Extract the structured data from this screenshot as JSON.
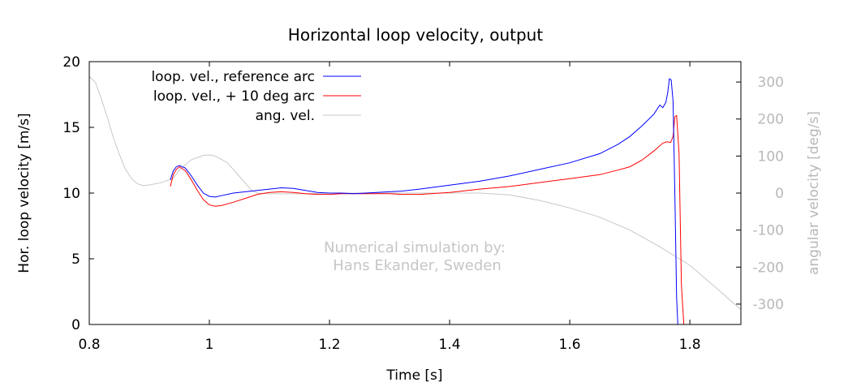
{
  "chart_data": {
    "type": "line",
    "title": "Horizontal loop velocity, output",
    "xlabel": "Time [s]",
    "ylabel": "Hor. loop velocity [m/s]",
    "y2label": "angular velocity [deg/s]",
    "xlim": [
      0.8,
      1.885
    ],
    "ylim": [
      0,
      20
    ],
    "y2lim": [
      -355,
      355
    ],
    "xticks": [
      0.8,
      1,
      1.2,
      1.4,
      1.6,
      1.8
    ],
    "xtick_labels": [
      "0.8",
      "1",
      "1.2",
      "1.4",
      "1.6",
      "1.8"
    ],
    "yticks": [
      0,
      5,
      10,
      15,
      20
    ],
    "ytick_labels": [
      "0",
      "5",
      "10",
      "15",
      "20"
    ],
    "y2ticks": [
      300,
      200,
      100,
      0,
      -100,
      -200,
      -300
    ],
    "y2tick_labels": [
      "300",
      "200",
      "100",
      "0",
      "-100",
      "-200",
      "-300"
    ],
    "grid": false,
    "legend_position": "top-left",
    "annotation": [
      "Numerical simulation by:",
      "Hans Ekander, Sweden"
    ],
    "series": [
      {
        "name": "loop. vel., reference arc",
        "color": "#0000ff",
        "axis": "y",
        "x": [
          0.935,
          0.94,
          0.945,
          0.95,
          0.96,
          0.97,
          0.98,
          0.99,
          1.0,
          1.01,
          1.02,
          1.04,
          1.06,
          1.08,
          1.1,
          1.12,
          1.14,
          1.16,
          1.18,
          1.2,
          1.22,
          1.24,
          1.26,
          1.3,
          1.32,
          1.35,
          1.4,
          1.45,
          1.5,
          1.55,
          1.6,
          1.65,
          1.68,
          1.7,
          1.72,
          1.74,
          1.75,
          1.755,
          1.76,
          1.763,
          1.766,
          1.769,
          1.772,
          1.775,
          1.778,
          1.78
        ],
        "y": [
          11.0,
          11.7,
          12.0,
          12.1,
          11.9,
          11.3,
          10.6,
          10.0,
          9.75,
          9.7,
          9.8,
          10.0,
          10.1,
          10.2,
          10.3,
          10.4,
          10.35,
          10.2,
          10.05,
          10.0,
          10.0,
          9.95,
          10.0,
          10.1,
          10.15,
          10.3,
          10.6,
          10.9,
          11.3,
          11.8,
          12.3,
          13.0,
          13.7,
          14.3,
          15.1,
          16.0,
          16.7,
          16.5,
          16.9,
          17.6,
          18.7,
          18.6,
          17.0,
          10.0,
          2.0,
          0.0
        ]
      },
      {
        "name": "loop. vel., + 10 deg arc",
        "color": "#ff0000",
        "axis": "y",
        "x": [
          0.935,
          0.94,
          0.945,
          0.95,
          0.96,
          0.97,
          0.98,
          0.99,
          1.0,
          1.01,
          1.02,
          1.04,
          1.06,
          1.08,
          1.1,
          1.12,
          1.14,
          1.16,
          1.18,
          1.2,
          1.22,
          1.24,
          1.26,
          1.3,
          1.32,
          1.35,
          1.4,
          1.45,
          1.5,
          1.55,
          1.6,
          1.65,
          1.68,
          1.7,
          1.72,
          1.74,
          1.755,
          1.762,
          1.768,
          1.772,
          1.775,
          1.778,
          1.782,
          1.786,
          1.79
        ],
        "y": [
          10.5,
          11.4,
          11.8,
          12.0,
          11.7,
          11.0,
          10.2,
          9.5,
          9.1,
          9.0,
          9.05,
          9.3,
          9.6,
          9.9,
          10.05,
          10.1,
          10.05,
          9.95,
          9.9,
          9.9,
          9.95,
          9.95,
          9.95,
          9.95,
          9.9,
          9.9,
          10.05,
          10.3,
          10.5,
          10.8,
          11.1,
          11.4,
          11.75,
          12.0,
          12.5,
          13.2,
          13.8,
          13.9,
          13.85,
          14.3,
          15.8,
          15.9,
          13.0,
          3.0,
          0.0
        ]
      },
      {
        "name": "ang. vel.",
        "color": "#c8c8c8",
        "axis": "y2",
        "x": [
          0.8,
          0.81,
          0.82,
          0.83,
          0.84,
          0.85,
          0.86,
          0.87,
          0.88,
          0.89,
          0.9,
          0.92,
          0.94,
          0.95,
          0.97,
          0.99,
          1.0,
          1.01,
          1.03,
          1.05,
          1.07,
          1.08,
          1.1,
          1.15,
          1.2,
          1.3,
          1.4,
          1.45,
          1.5,
          1.55,
          1.6,
          1.65,
          1.7,
          1.75,
          1.8,
          1.85,
          1.885
        ],
        "y": [
          315,
          300,
          255,
          205,
          150,
          105,
          65,
          40,
          25,
          20,
          22,
          28,
          40,
          62,
          90,
          102,
          103,
          100,
          82,
          45,
          8,
          0,
          -2,
          -2,
          0,
          0,
          0,
          0,
          -5,
          -20,
          -40,
          -65,
          -100,
          -145,
          -195,
          -265,
          -315
        ]
      }
    ]
  }
}
